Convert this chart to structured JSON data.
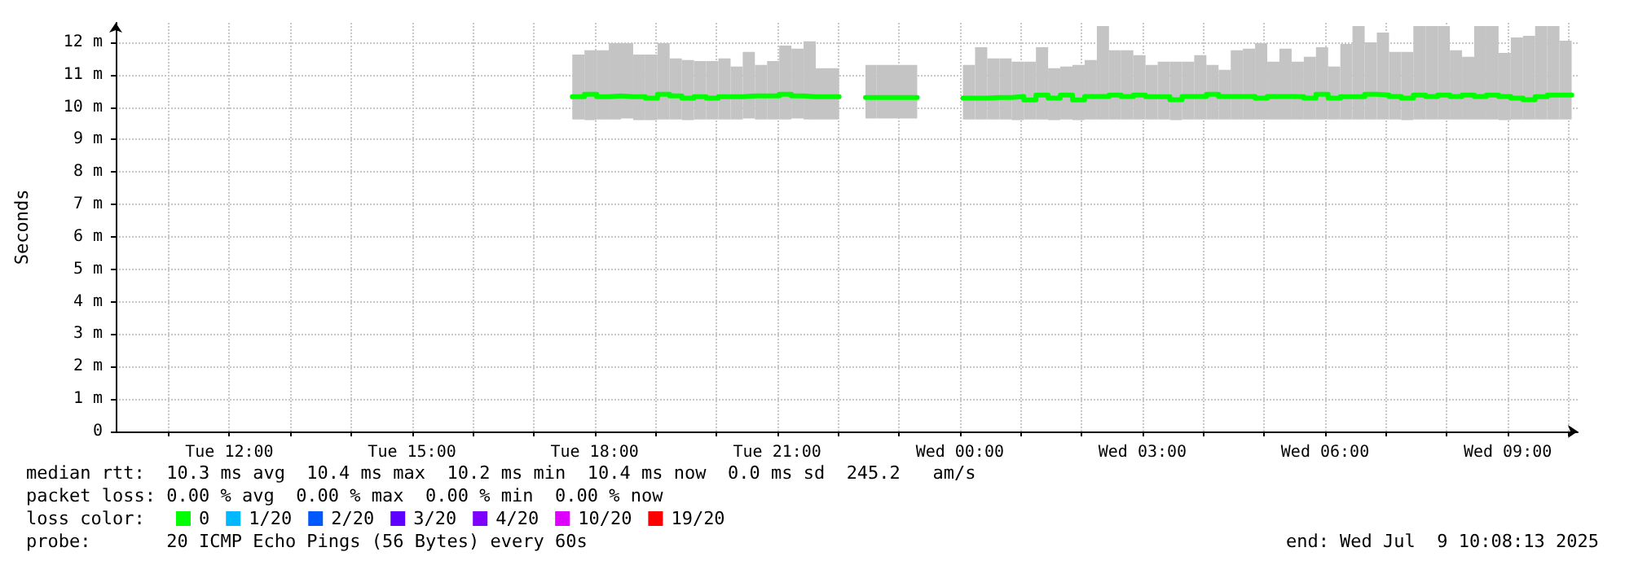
{
  "chart_data": {
    "type": "step",
    "ylabel": "Seconds",
    "legend_title": "loss color:",
    "legend": "bottom left",
    "grid": true,
    "marker": "none",
    "line_style": "solid",
    "xlim": [
      "2025-07-08T10:08",
      "2025-07-09T10:09"
    ],
    "ylim": [
      0,
      12.6
    ],
    "xticks": [
      {
        "value": "2025-07-08T11:00",
        "label": null
      },
      {
        "value": "2025-07-08T12:00",
        "label": "Tue 12:00"
      },
      {
        "value": "2025-07-08T13:00",
        "label": null
      },
      {
        "value": "2025-07-08T14:00",
        "label": null
      },
      {
        "value": "2025-07-08T15:00",
        "label": "Tue 15:00"
      },
      {
        "value": "2025-07-08T16:00",
        "label": null
      },
      {
        "value": "2025-07-08T17:00",
        "label": null
      },
      {
        "value": "2025-07-08T18:00",
        "label": "Tue 18:00"
      },
      {
        "value": "2025-07-08T19:00",
        "label": null
      },
      {
        "value": "2025-07-08T20:00",
        "label": null
      },
      {
        "value": "2025-07-08T21:00",
        "label": "Tue 21:00"
      },
      {
        "value": "2025-07-08T22:00",
        "label": null
      },
      {
        "value": "2025-07-08T23:00",
        "label": null
      },
      {
        "value": "2025-07-09T00:00",
        "label": "Wed 00:00"
      },
      {
        "value": "2025-07-09T01:00",
        "label": null
      },
      {
        "value": "2025-07-09T02:00",
        "label": null
      },
      {
        "value": "2025-07-09T03:00",
        "label": "Wed 03:00"
      },
      {
        "value": "2025-07-09T04:00",
        "label": null
      },
      {
        "value": "2025-07-09T05:00",
        "label": null
      },
      {
        "value": "2025-07-09T06:00",
        "label": "Wed 06:00"
      },
      {
        "value": "2025-07-09T07:00",
        "label": null
      },
      {
        "value": "2025-07-09T08:00",
        "label": null
      },
      {
        "value": "2025-07-09T09:00",
        "label": "Wed 09:00"
      },
      {
        "value": "2025-07-09T10:00",
        "label": null
      }
    ],
    "yticks": [
      0,
      {
        "value": 1,
        "label": "1 m"
      },
      {
        "value": 2,
        "label": "2 m"
      },
      {
        "value": 3,
        "label": "3 m"
      },
      {
        "value": 4,
        "label": "4 m"
      },
      {
        "value": 5,
        "label": "5 m"
      },
      {
        "value": 6,
        "label": "6 m"
      },
      {
        "value": 7,
        "label": "7 m"
      },
      {
        "value": 8,
        "label": "8 m"
      },
      {
        "value": 9,
        "label": "9 m"
      },
      {
        "value": 10,
        "label": "10 m"
      },
      {
        "value": 11,
        "label": "11 m"
      },
      {
        "value": 12,
        "label": "12 m"
      }
    ],
    "annotations": [
      "median rtt:  10.3 ms avg  10.4 ms max  10.2 ms min  10.4 ms now  0.0 ms sd  245.2   am/s",
      "packet loss: 0.00 % avg  0.00 % max  0.00 % min  0.00 % now",
      "probe:       20 ICMP Echo Pings (56 Bytes) every 60s",
      "end: Wed Jul  9 10:08:13 2025"
    ],
    "series": [
      {
        "name": "0",
        "color": "#00ff00",
        "x": [
          "2025-07-08T17:38",
          "2025-07-08T17:50",
          "2025-07-08T18:02",
          "2025-07-08T18:14",
          "2025-07-08T18:26",
          "2025-07-08T18:38",
          "2025-07-08T18:50",
          "2025-07-08T19:02",
          "2025-07-08T19:14",
          "2025-07-08T19:26",
          "2025-07-08T19:38",
          "2025-07-08T19:50",
          "2025-07-08T20:02",
          "2025-07-08T20:14",
          "2025-07-08T20:26",
          "2025-07-08T20:38",
          "2025-07-08T20:50",
          "2025-07-08T21:02",
          "2025-07-08T21:14",
          "2025-07-08T21:26",
          "2025-07-08T21:38",
          "2025-07-08T21:50",
          "2025-07-08T22:01",
          "2025-07-08T22:12",
          "2025-07-08T22:27",
          "2025-07-08T22:38",
          "2025-07-08T23:18",
          "2025-07-09T00:03",
          "2025-07-09T00:15",
          "2025-07-09T00:27",
          "2025-07-09T00:39",
          "2025-07-09T00:51",
          "2025-07-09T01:03",
          "2025-07-09T01:15",
          "2025-07-09T01:27",
          "2025-07-09T01:39",
          "2025-07-09T01:51",
          "2025-07-09T02:03",
          "2025-07-09T02:15",
          "2025-07-09T02:27",
          "2025-07-09T02:39",
          "2025-07-09T02:51",
          "2025-07-09T03:03",
          "2025-07-09T03:15",
          "2025-07-09T03:27",
          "2025-07-09T03:39",
          "2025-07-09T03:51",
          "2025-07-09T04:03",
          "2025-07-09T04:15",
          "2025-07-09T04:27",
          "2025-07-09T04:39",
          "2025-07-09T04:51",
          "2025-07-09T05:03",
          "2025-07-09T05:15",
          "2025-07-09T05:27",
          "2025-07-09T05:39",
          "2025-07-09T05:51",
          "2025-07-09T06:03",
          "2025-07-09T06:15",
          "2025-07-09T06:27",
          "2025-07-09T06:39",
          "2025-07-09T06:51",
          "2025-07-09T07:03",
          "2025-07-09T07:15",
          "2025-07-09T07:27",
          "2025-07-09T07:39",
          "2025-07-09T07:51",
          "2025-07-09T08:03",
          "2025-07-09T08:15",
          "2025-07-09T08:27",
          "2025-07-09T08:39",
          "2025-07-09T08:51",
          "2025-07-09T09:03",
          "2025-07-09T09:15",
          "2025-07-09T09:27",
          "2025-07-09T09:39",
          "2025-07-09T09:51",
          "2025-07-09T10:03"
        ],
        "values": [
          10.32,
          10.4,
          10.32,
          10.35,
          10.32,
          10.32,
          10.28,
          10.4,
          10.35,
          10.28,
          10.32,
          10.28,
          10.32,
          10.32,
          10.35,
          10.35,
          10.35,
          10.4,
          10.35,
          10.32,
          10.32,
          10.32,
          null,
          null,
          10.3,
          10.3,
          null,
          10.28,
          10.28,
          10.3,
          10.3,
          10.33,
          10.22,
          10.37,
          10.28,
          10.37,
          10.22,
          10.33,
          10.33,
          10.37,
          10.33,
          10.37,
          10.32,
          10.32,
          10.23,
          10.33,
          10.33,
          10.4,
          10.33,
          10.33,
          10.33,
          10.28,
          10.33,
          10.33,
          10.32,
          10.28,
          10.4,
          10.28,
          10.32,
          10.32,
          10.4,
          10.37,
          10.33,
          10.28,
          10.37,
          10.33,
          10.37,
          10.33,
          10.37,
          10.33,
          10.37,
          10.33,
          10.28,
          10.23,
          10.32,
          10.37,
          10.37,
          10.37
        ],
        "lower": [
          9.62,
          9.6,
          9.62,
          9.62,
          9.65,
          9.6,
          9.6,
          9.62,
          9.62,
          9.6,
          9.62,
          9.62,
          9.62,
          9.62,
          9.65,
          9.62,
          9.62,
          9.62,
          9.65,
          9.62,
          9.62,
          9.62,
          null,
          null,
          9.65,
          9.65,
          null,
          9.62,
          9.62,
          9.62,
          9.62,
          9.6,
          9.62,
          9.62,
          9.6,
          9.62,
          9.6,
          9.62,
          9.62,
          9.62,
          9.62,
          9.62,
          9.62,
          9.62,
          9.6,
          9.62,
          9.62,
          9.62,
          9.62,
          9.62,
          9.62,
          9.62,
          9.62,
          9.62,
          9.62,
          9.62,
          9.62,
          9.62,
          9.62,
          9.62,
          9.62,
          9.62,
          9.62,
          9.6,
          9.62,
          9.62,
          9.62,
          9.62,
          9.62,
          9.62,
          9.62,
          9.6,
          9.62,
          9.62,
          9.62,
          9.62,
          9.62,
          9.62
        ],
        "upper": [
          11.62,
          11.75,
          11.75,
          11.97,
          11.97,
          11.62,
          11.62,
          11.97,
          11.5,
          11.45,
          11.42,
          11.42,
          11.5,
          11.25,
          11.7,
          11.3,
          11.42,
          11.9,
          11.8,
          12.03,
          11.2,
          11.2,
          null,
          null,
          11.3,
          11.3,
          null,
          11.3,
          11.85,
          11.5,
          11.5,
          11.4,
          11.4,
          11.85,
          11.2,
          11.25,
          11.3,
          11.45,
          12.5,
          11.75,
          11.75,
          11.6,
          11.3,
          11.4,
          11.4,
          11.4,
          11.6,
          11.3,
          11.15,
          11.75,
          11.8,
          11.97,
          11.4,
          11.8,
          11.4,
          11.55,
          11.85,
          11.25,
          11.95,
          12.5,
          12.0,
          12.3,
          11.7,
          11.7,
          12.5,
          12.5,
          12.5,
          11.75,
          11.55,
          12.5,
          12.5,
          11.67,
          12.15,
          12.2,
          12.5,
          12.5,
          12.05,
          12.05
        ]
      },
      {
        "name": "1/20",
        "color": "#00b8ff"
      },
      {
        "name": "2/20",
        "color": "#0059ff"
      },
      {
        "name": "3/20",
        "color": "#5e00ff"
      },
      {
        "name": "4/20",
        "color": "#7e00ff"
      },
      {
        "name": "10/20",
        "color": "#dd00ff"
      },
      {
        "name": "19/20",
        "color": "#ff0000"
      }
    ]
  }
}
